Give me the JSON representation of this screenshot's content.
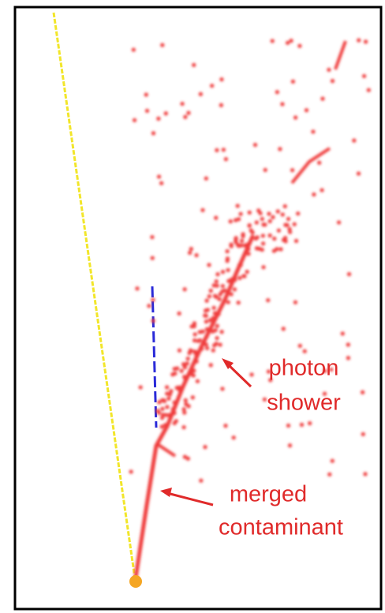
{
  "annotations": [
    {
      "lines": [
        "photon",
        "shower"
      ]
    },
    {
      "lines": [
        "merged",
        "contaminant"
      ]
    }
  ]
}
